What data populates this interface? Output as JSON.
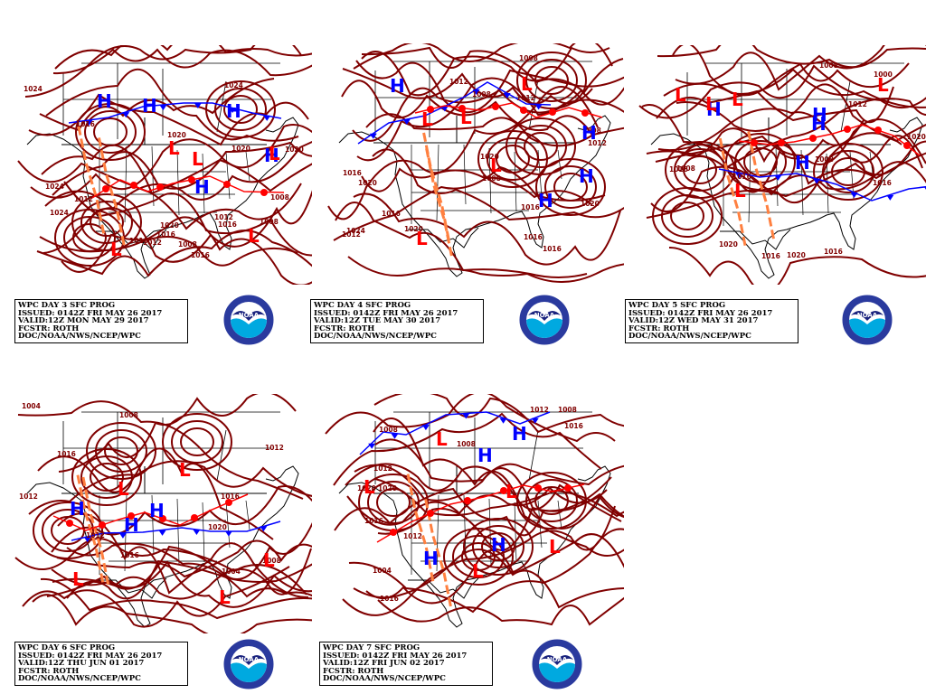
{
  "panels": [
    {
      "lines": [
        "WPC DAY 3 SFC PROG",
        "ISSUED: 0142Z FRI MAY 26 2017",
        "VALID:12Z MON MAY 29 2017",
        "FCSTR: ROTH",
        "DOC/NOAA/NWS/NCEP/WPC"
      ],
      "isobars": [
        "1016",
        "1020",
        "1020",
        "1024",
        "1020",
        "1024",
        "1016",
        "1024",
        "1020",
        "1016",
        "1012",
        "1008",
        "1012",
        "1016",
        "1024",
        "1008",
        "1012",
        "1016",
        "1008"
      ],
      "highs": 5,
      "lows": 5
    },
    {
      "lines": [
        "WPC DAY 4 SFC PROG",
        "ISSUED: 0142Z FRI MAY 26 2017",
        "VALID:12Z TUE MAY 30 2017",
        "FCSTR: ROTH",
        "DOC/NOAA/NWS/NCEP/WPC"
      ],
      "isobars": [
        "1008",
        "1012",
        "1016",
        "1024",
        "1020",
        "1016",
        "1020",
        "1016",
        "1020",
        "1012",
        "1008",
        "1016",
        "1012",
        "1020",
        "1008",
        "1016",
        "1012",
        "1008"
      ],
      "highs": 4,
      "lows": 5
    },
    {
      "lines": [
        "WPC DAY 5 SFC PROG",
        "ISSUED: 0142Z FRI MAY 26 2017",
        "VALID:12Z WED MAY 31 2017",
        "FCSTR: ROTH",
        "DOC/NOAA/NWS/NCEP/WPC"
      ],
      "isobars": [
        "1008",
        "1016",
        "1000",
        "1016",
        "1008",
        "1020",
        "1016",
        "1020",
        "1012",
        "1016",
        "1008",
        "1020",
        "1016"
      ],
      "highs": 4,
      "lows": 5
    },
    {
      "lines": [
        "WPC DAY 6 SFC PROG",
        "ISSUED: 0142Z FRI MAY 26 2017",
        "VALID:12Z THU JUN 01 2017",
        "FCSTR: ROTH",
        "DOC/NOAA/NWS/NCEP/WPC"
      ],
      "isobars": [
        "1004",
        "1004",
        "1012",
        "1016",
        "1020",
        "1012",
        "1016",
        "1008",
        "1012",
        "1008",
        "1016"
      ],
      "highs": 3,
      "lows": 5
    },
    {
      "lines": [
        "WPC DAY 7 SFC PROG",
        "ISSUED: 0142Z FRI MAY 26 2017",
        "VALID:12Z FRI JUN 02 2017",
        "FCSTR: ROTH",
        "DOC/NOAA/NWS/NCEP/WPC"
      ],
      "isobars": [
        "1016",
        "1020",
        "1004",
        "1016",
        "1012",
        "1008",
        "1012",
        "1008",
        "1012",
        "1016",
        "1020",
        "1008"
      ],
      "highs": 4,
      "lows": 5
    }
  ],
  "logo_text": "NOAA",
  "colors": {
    "isobar": "#800000",
    "high": "#0000ff",
    "low": "#ff0000",
    "trough": "#ff8040",
    "occluded": "#9933cc",
    "coast": "#000000"
  }
}
